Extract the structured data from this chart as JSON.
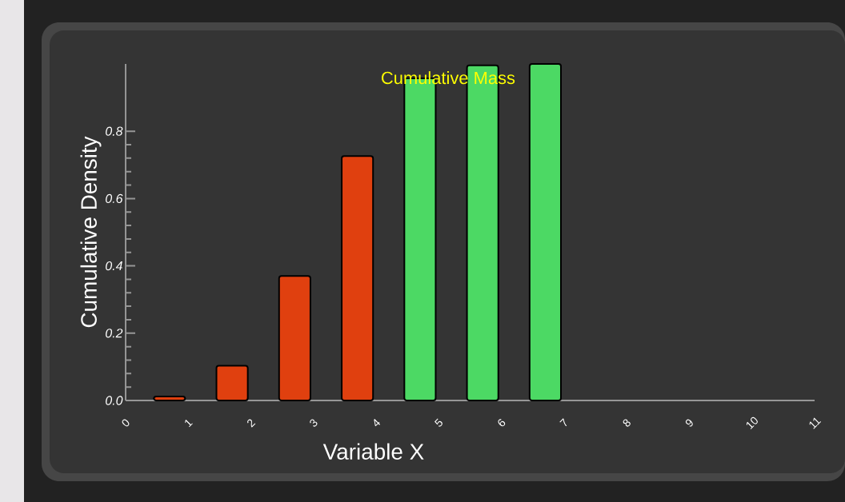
{
  "chart_data": {
    "type": "bar",
    "title": "Cumulative Mass",
    "xlabel": "Variable X",
    "ylabel": "Cumulative Density",
    "x": [
      0.7,
      1.7,
      2.7,
      3.7,
      4.7,
      5.7,
      6.7
    ],
    "values": [
      0.012,
      0.103,
      0.37,
      0.726,
      0.957,
      0.996,
      1.0
    ],
    "colors": [
      "#e0400f",
      "#e0400f",
      "#e0400f",
      "#e0400f",
      "#4cd964",
      "#4cd964",
      "#4cd964"
    ],
    "xlim": [
      0,
      11
    ],
    "xticks": [
      0,
      1,
      2,
      3,
      4,
      5,
      6,
      7,
      8,
      9,
      10,
      11
    ],
    "ylim": [
      0,
      1.0
    ],
    "yticks": [
      {
        "value": 0,
        "label": "0.0"
      },
      {
        "value": 0.2,
        "label": "0.2"
      },
      {
        "value": 0.4,
        "label": "0.4"
      },
      {
        "value": 0.6,
        "label": "0.6"
      },
      {
        "value": 0.8,
        "label": "0.8"
      }
    ],
    "grid": false
  }
}
